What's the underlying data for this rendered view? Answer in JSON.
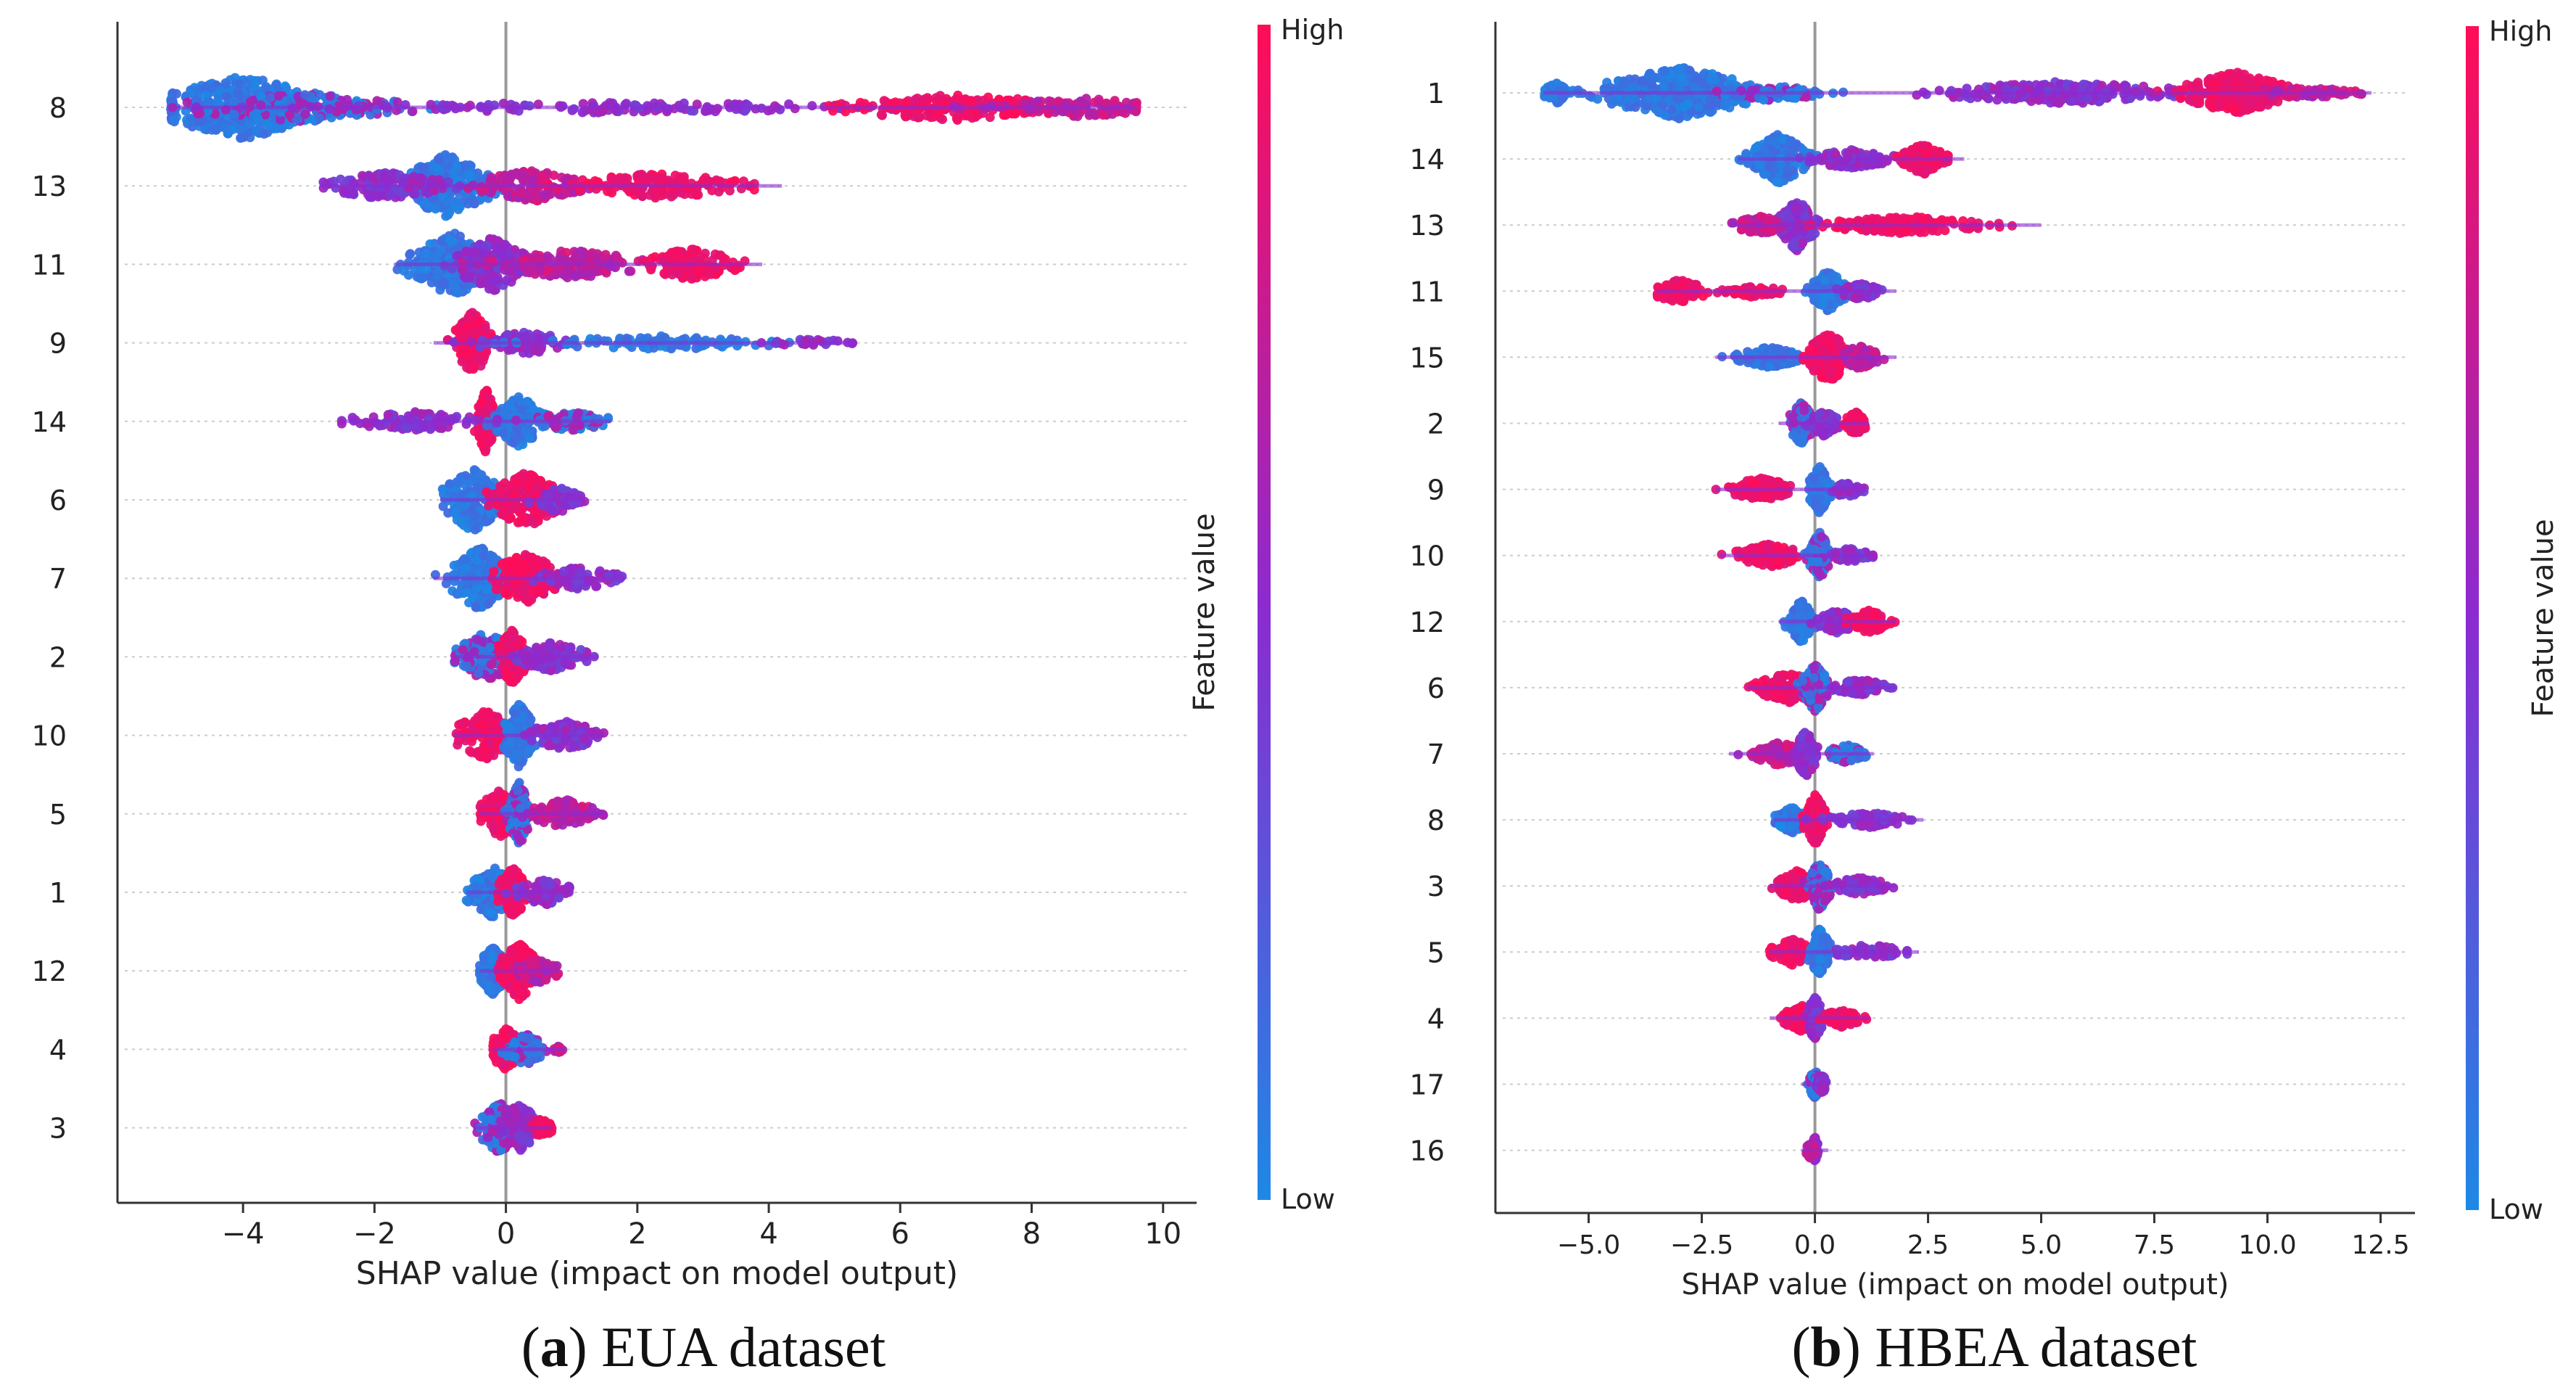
{
  "figure": {
    "panel_a_caption": {
      "letter": "a",
      "text": "EUA dataset"
    },
    "panel_b_caption": {
      "letter": "b",
      "text": "HBEA dataset"
    }
  },
  "colors": {
    "low": "#1E88E5",
    "high": "#FF0D57",
    "mid": "#8B2BD1",
    "axis": "#333333",
    "grid": "#cccccc",
    "zero": "#999999"
  },
  "chart_data": [
    {
      "type": "scatter",
      "subtype": "shap-beeswarm",
      "panel": "a",
      "title": "EUA dataset",
      "xlabel": "SHAP value (impact on model output)",
      "ylabel": "",
      "xlim": [
        -5.8,
        10.4
      ],
      "xticks": [
        -4,
        -2,
        0,
        2,
        4,
        6,
        8,
        10
      ],
      "xtick_labels": [
        "−4",
        "−2",
        "0",
        "2",
        "4",
        "6",
        "8",
        "10"
      ],
      "colorbar": {
        "label": "Feature value",
        "high": "High",
        "low": "Low"
      },
      "features": [
        {
          "name": "8",
          "min": -5.1,
          "max": 9.6,
          "clusters": [
            [
              -4.0,
              0.9,
              1.0,
              "low"
            ],
            [
              -3.2,
              1.2,
              0.45,
              "mixlow"
            ],
            [
              1.5,
              3.0,
              0.18,
              "mid"
            ],
            [
              6.8,
              1.2,
              0.42,
              "high"
            ],
            [
              8.8,
              0.9,
              0.3,
              "mixhigh"
            ]
          ]
        },
        {
          "name": "13",
          "min": -2.8,
          "max": 4.2,
          "clusters": [
            [
              -0.9,
              0.45,
              1.0,
              "low"
            ],
            [
              -1.8,
              0.6,
              0.45,
              "mid"
            ],
            [
              0.4,
              0.6,
              0.5,
              "mixhigh"
            ],
            [
              2.3,
              1.0,
              0.4,
              "high"
            ]
          ]
        },
        {
          "name": "11",
          "min": -1.7,
          "max": 3.9,
          "clusters": [
            [
              -0.8,
              0.45,
              1.0,
              "low"
            ],
            [
              -0.2,
              0.35,
              0.85,
              "mid"
            ],
            [
              1.0,
              0.8,
              0.45,
              "mixhigh"
            ],
            [
              2.8,
              0.5,
              0.5,
              "high"
            ]
          ]
        },
        {
          "name": "9",
          "min": -1.1,
          "max": 5.3,
          "clusters": [
            [
              -0.5,
              0.18,
              1.0,
              "high"
            ],
            [
              0.3,
              0.5,
              0.35,
              "mid"
            ],
            [
              2.3,
              1.3,
              0.22,
              "low"
            ],
            [
              4.6,
              0.5,
              0.12,
              "mid"
            ]
          ]
        },
        {
          "name": "14",
          "min": -2.5,
          "max": 1.6,
          "clusters": [
            [
              -0.3,
              0.1,
              1.0,
              "high"
            ],
            [
              0.2,
              0.25,
              0.8,
              "low"
            ],
            [
              -1.4,
              0.7,
              0.3,
              "mid"
            ],
            [
              1.0,
              0.4,
              0.3,
              "mixlow"
            ]
          ]
        },
        {
          "name": "6",
          "min": -1.0,
          "max": 1.2,
          "clusters": [
            [
              -0.5,
              0.3,
              1.0,
              "low"
            ],
            [
              0.3,
              0.35,
              0.9,
              "high"
            ],
            [
              0.8,
              0.25,
              0.4,
              "mid"
            ]
          ]
        },
        {
          "name": "7",
          "min": -1.1,
          "max": 1.8,
          "clusters": [
            [
              -0.4,
              0.3,
              1.0,
              "low"
            ],
            [
              0.3,
              0.35,
              0.8,
              "high"
            ],
            [
              1.1,
              0.45,
              0.35,
              "mid"
            ]
          ]
        },
        {
          "name": "2",
          "min": -0.8,
          "max": 1.4,
          "clusters": [
            [
              -0.3,
              0.3,
              0.8,
              "mixlow"
            ],
            [
              0.1,
              0.15,
              0.85,
              "high"
            ],
            [
              0.7,
              0.4,
              0.45,
              "mid"
            ]
          ]
        },
        {
          "name": "10",
          "min": -0.8,
          "max": 1.5,
          "clusters": [
            [
              -0.3,
              0.3,
              0.8,
              "high"
            ],
            [
              0.2,
              0.15,
              1.0,
              "low"
            ],
            [
              0.9,
              0.4,
              0.45,
              "mid"
            ]
          ]
        },
        {
          "name": "5",
          "min": -0.4,
          "max": 1.5,
          "clusters": [
            [
              -0.1,
              0.2,
              0.75,
              "high"
            ],
            [
              0.2,
              0.1,
              1.0,
              "mixlow"
            ],
            [
              0.9,
              0.4,
              0.45,
              "mixhigh"
            ]
          ]
        },
        {
          "name": "1",
          "min": -0.6,
          "max": 1.0,
          "clusters": [
            [
              -0.2,
              0.25,
              0.8,
              "low"
            ],
            [
              0.1,
              0.15,
              0.8,
              "high"
            ],
            [
              0.6,
              0.3,
              0.4,
              "mid"
            ]
          ]
        },
        {
          "name": "12",
          "min": -0.4,
          "max": 0.8,
          "clusters": [
            [
              -0.2,
              0.15,
              0.75,
              "low"
            ],
            [
              0.2,
              0.2,
              0.9,
              "high"
            ],
            [
              0.5,
              0.2,
              0.4,
              "mixhigh"
            ]
          ]
        },
        {
          "name": "4",
          "min": -0.2,
          "max": 0.9,
          "clusters": [
            [
              0.0,
              0.15,
              0.7,
              "high"
            ],
            [
              0.3,
              0.2,
              0.5,
              "mixlow"
            ],
            [
              0.8,
              0.05,
              0.1,
              "mixhigh"
            ]
          ]
        },
        {
          "name": "3",
          "min": -0.5,
          "max": 0.7,
          "clusters": [
            [
              -0.1,
              0.2,
              0.8,
              "mixlow"
            ],
            [
              0.2,
              0.2,
              0.75,
              "mid"
            ],
            [
              0.55,
              0.12,
              0.3,
              "high"
            ]
          ]
        }
      ]
    },
    {
      "type": "scatter",
      "subtype": "shap-beeswarm",
      "panel": "b",
      "title": "HBEA dataset",
      "xlabel": "SHAP value (impact on model output)",
      "ylabel": "",
      "xlim": [
        -6.9,
        13.1
      ],
      "xticks": [
        -5.0,
        -2.5,
        0.0,
        2.5,
        5.0,
        7.5,
        10.0,
        12.5
      ],
      "xtick_labels": [
        "−5.0",
        "−2.5",
        "0.0",
        "2.5",
        "5.0",
        "7.5",
        "10.0",
        "12.5"
      ],
      "colorbar": {
        "label": "Feature value",
        "high": "High",
        "low": "Low"
      },
      "features": [
        {
          "name": "1",
          "min": -6.0,
          "max": 12.3,
          "clusters": [
            [
              -5.7,
              0.2,
              0.4,
              "low"
            ],
            [
              -3.0,
              1.2,
              1.0,
              "low"
            ],
            [
              -1.0,
              0.8,
              0.3,
              "mixlow"
            ],
            [
              5.5,
              1.8,
              0.45,
              "mid"
            ],
            [
              9.3,
              0.8,
              0.8,
              "high"
            ],
            [
              10.8,
              0.8,
              0.22,
              "mixhigh"
            ]
          ]
        },
        {
          "name": "14",
          "min": -1.7,
          "max": 3.3,
          "clusters": [
            [
              -0.8,
              0.45,
              0.95,
              "low"
            ],
            [
              0.8,
              0.7,
              0.35,
              "mid"
            ],
            [
              2.4,
              0.3,
              0.6,
              "high"
            ]
          ]
        },
        {
          "name": "13",
          "min": -1.9,
          "max": 5.0,
          "clusters": [
            [
              -0.4,
              0.25,
              1.0,
              "mid"
            ],
            [
              -1.2,
              0.4,
              0.35,
              "mixhigh"
            ],
            [
              2.0,
              1.2,
              0.35,
              "high"
            ]
          ]
        },
        {
          "name": "11",
          "min": -3.5,
          "max": 1.8,
          "clusters": [
            [
              -3.0,
              0.4,
              0.45,
              "high"
            ],
            [
              -1.4,
              0.5,
              0.22,
              "high"
            ],
            [
              0.3,
              0.25,
              0.8,
              "low"
            ],
            [
              1.0,
              0.3,
              0.35,
              "mid"
            ]
          ]
        },
        {
          "name": "15",
          "min": -2.2,
          "max": 1.8,
          "clusters": [
            [
              -1.0,
              0.5,
              0.4,
              "low"
            ],
            [
              0.3,
              0.3,
              1.0,
              "high"
            ],
            [
              1.0,
              0.3,
              0.45,
              "mixhigh"
            ]
          ]
        },
        {
          "name": "2",
          "min": -0.8,
          "max": 1.2,
          "clusters": [
            [
              -0.3,
              0.18,
              0.8,
              "mixlow"
            ],
            [
              0.2,
              0.2,
              0.5,
              "mid"
            ],
            [
              0.9,
              0.15,
              0.45,
              "high"
            ]
          ]
        },
        {
          "name": "9",
          "min": -2.2,
          "max": 1.1,
          "clusters": [
            [
              -1.2,
              0.5,
              0.45,
              "high"
            ],
            [
              0.1,
              0.15,
              0.9,
              "low"
            ],
            [
              0.7,
              0.25,
              0.3,
              "mid"
            ]
          ]
        },
        {
          "name": "10",
          "min": -2.1,
          "max": 1.3,
          "clusters": [
            [
              -1.0,
              0.5,
              0.45,
              "high"
            ],
            [
              0.1,
              0.15,
              0.9,
              "mixlow"
            ],
            [
              0.8,
              0.3,
              0.3,
              "mid"
            ]
          ]
        },
        {
          "name": "12",
          "min": -0.8,
          "max": 1.8,
          "clusters": [
            [
              -0.3,
              0.2,
              0.8,
              "low"
            ],
            [
              0.5,
              0.3,
              0.45,
              "mid"
            ],
            [
              1.2,
              0.3,
              0.45,
              "high"
            ]
          ]
        },
        {
          "name": "6",
          "min": -1.5,
          "max": 1.8,
          "clusters": [
            [
              -0.6,
              0.45,
              0.6,
              "high"
            ],
            [
              0.0,
              0.2,
              0.9,
              "mixlow"
            ],
            [
              1.0,
              0.4,
              0.35,
              "mid"
            ]
          ]
        },
        {
          "name": "7",
          "min": -1.9,
          "max": 1.3,
          "clusters": [
            [
              -0.8,
              0.5,
              0.45,
              "mixhigh"
            ],
            [
              -0.2,
              0.15,
              0.9,
              "mid"
            ],
            [
              0.7,
              0.3,
              0.35,
              "mixlow"
            ]
          ]
        },
        {
          "name": "8",
          "min": -0.9,
          "max": 2.4,
          "clusters": [
            [
              -0.5,
              0.25,
              0.5,
              "low"
            ],
            [
              0.0,
              0.15,
              1.0,
              "high"
            ],
            [
              1.2,
              0.6,
              0.3,
              "mid"
            ]
          ]
        },
        {
          "name": "3",
          "min": -1.0,
          "max": 1.8,
          "clusters": [
            [
              -0.4,
              0.3,
              0.6,
              "high"
            ],
            [
              0.1,
              0.15,
              0.95,
              "mixlow"
            ],
            [
              1.0,
              0.4,
              0.35,
              "mid"
            ]
          ]
        },
        {
          "name": "5",
          "min": -1.0,
          "max": 2.3,
          "clusters": [
            [
              -0.5,
              0.3,
              0.5,
              "high"
            ],
            [
              0.1,
              0.15,
              0.9,
              "low"
            ],
            [
              1.2,
              0.5,
              0.3,
              "mid"
            ]
          ]
        },
        {
          "name": "4",
          "min": -1.0,
          "max": 1.2,
          "clusters": [
            [
              -0.3,
              0.3,
              0.5,
              "high"
            ],
            [
              0.0,
              0.1,
              0.85,
              "mid"
            ],
            [
              0.6,
              0.3,
              0.35,
              "high"
            ]
          ]
        },
        {
          "name": "17",
          "min": -0.3,
          "max": 0.3,
          "clusters": [
            [
              0.0,
              0.08,
              0.55,
              "mixlow"
            ],
            [
              0.15,
              0.08,
              0.35,
              "mid"
            ]
          ]
        },
        {
          "name": "16",
          "min": -0.3,
          "max": 0.3,
          "clusters": [
            [
              0.0,
              0.06,
              0.5,
              "mid"
            ],
            [
              -0.1,
              0.08,
              0.3,
              "mixhigh"
            ]
          ]
        }
      ]
    }
  ]
}
